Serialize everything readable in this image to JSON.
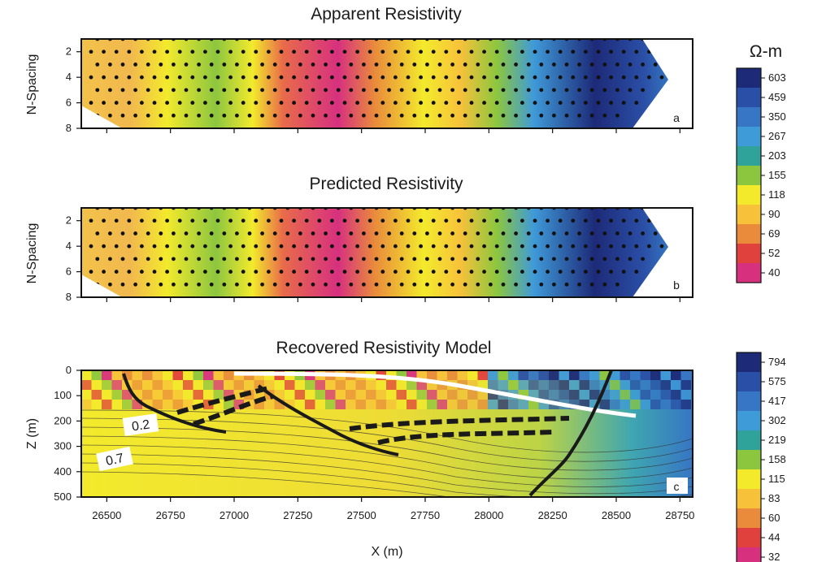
{
  "chart_data": [
    {
      "type": "heatmap",
      "panel_label": "a",
      "title": "Apparent Resistivity",
      "ylabel": "N-Spacing",
      "yticks": [
        2,
        4,
        6,
        8
      ],
      "ylim": [
        1,
        8
      ],
      "xlim": [
        26400,
        28800
      ],
      "zones": [
        {
          "x0": 26400,
          "x1": 26600,
          "value": 80
        },
        {
          "x0": 26600,
          "x1": 26800,
          "value": 180
        },
        {
          "x0": 26800,
          "x1": 27000,
          "value": 110
        },
        {
          "x0": 27000,
          "x1": 27300,
          "value": 45
        },
        {
          "x0": 27300,
          "x1": 27800,
          "value": 110
        },
        {
          "x0": 27800,
          "x1": 28100,
          "value": 200
        },
        {
          "x0": 28100,
          "x1": 28500,
          "value": 500
        },
        {
          "x0": 28500,
          "x1": 28800,
          "value": 300
        }
      ]
    },
    {
      "type": "heatmap",
      "panel_label": "b",
      "title": "Predicted Resistivity",
      "ylabel": "N-Spacing",
      "yticks": [
        2,
        4,
        6,
        8
      ],
      "ylim": [
        1,
        8
      ],
      "xlim": [
        26400,
        28800
      ],
      "zones": [
        {
          "x0": 26400,
          "x1": 26600,
          "value": 80
        },
        {
          "x0": 26600,
          "x1": 26800,
          "value": 180
        },
        {
          "x0": 26800,
          "x1": 27000,
          "value": 110
        },
        {
          "x0": 27000,
          "x1": 27300,
          "value": 45
        },
        {
          "x0": 27300,
          "x1": 27800,
          "value": 110
        },
        {
          "x0": 27800,
          "x1": 28100,
          "value": 200
        },
        {
          "x0": 28100,
          "x1": 28500,
          "value": 500
        },
        {
          "x0": 28500,
          "x1": 28800,
          "value": 300
        }
      ]
    },
    {
      "type": "heatmap",
      "panel_label": "c",
      "title": "Recovered Resistivity Model",
      "ylabel": "Z (m)",
      "xlabel": "X (m)",
      "yticks": [
        0,
        100,
        200,
        300,
        400,
        500
      ],
      "ylim": [
        0,
        500
      ],
      "xticks": [
        26500,
        26750,
        27000,
        27250,
        27500,
        27750,
        28000,
        28250,
        28500,
        28750
      ],
      "xlim": [
        26400,
        28800
      ],
      "contour_labels": [
        {
          "text": "0.2",
          "x": 26610,
          "z": 220
        },
        {
          "text": "0.7",
          "x": 26540,
          "z": 350
        }
      ],
      "zones": [
        {
          "x0": 26400,
          "x1": 27900,
          "z0": 0,
          "z1": 200,
          "value": 90
        },
        {
          "x0": 27900,
          "x1": 28800,
          "z0": 0,
          "z1": 250,
          "value": 400
        },
        {
          "x0": 26400,
          "x1": 28800,
          "z0": 200,
          "z1": 500,
          "value": 115
        }
      ]
    }
  ],
  "colorbar_top": {
    "unit_label": "Ω-m",
    "labels": [
      "603",
      "459",
      "350",
      "267",
      "203",
      "155",
      "118",
      "90",
      "69",
      "52",
      "40"
    ],
    "colors": [
      "#1d2a78",
      "#2a4fa6",
      "#3676c4",
      "#3f9ad8",
      "#2fa39a",
      "#8cc63f",
      "#f3ea2c",
      "#f7c23a",
      "#e98b3b",
      "#e0413c",
      "#d7307f"
    ]
  },
  "colorbar_bottom": {
    "labels": [
      "794",
      "575",
      "417",
      "302",
      "219",
      "158",
      "115",
      "83",
      "60",
      "44",
      "32"
    ],
    "colors": [
      "#1d2a78",
      "#2a4fa6",
      "#3676c4",
      "#3f9ad8",
      "#2fa39a",
      "#8cc63f",
      "#f3ea2c",
      "#f7c23a",
      "#e98b3b",
      "#e0413c",
      "#d7307f"
    ]
  }
}
